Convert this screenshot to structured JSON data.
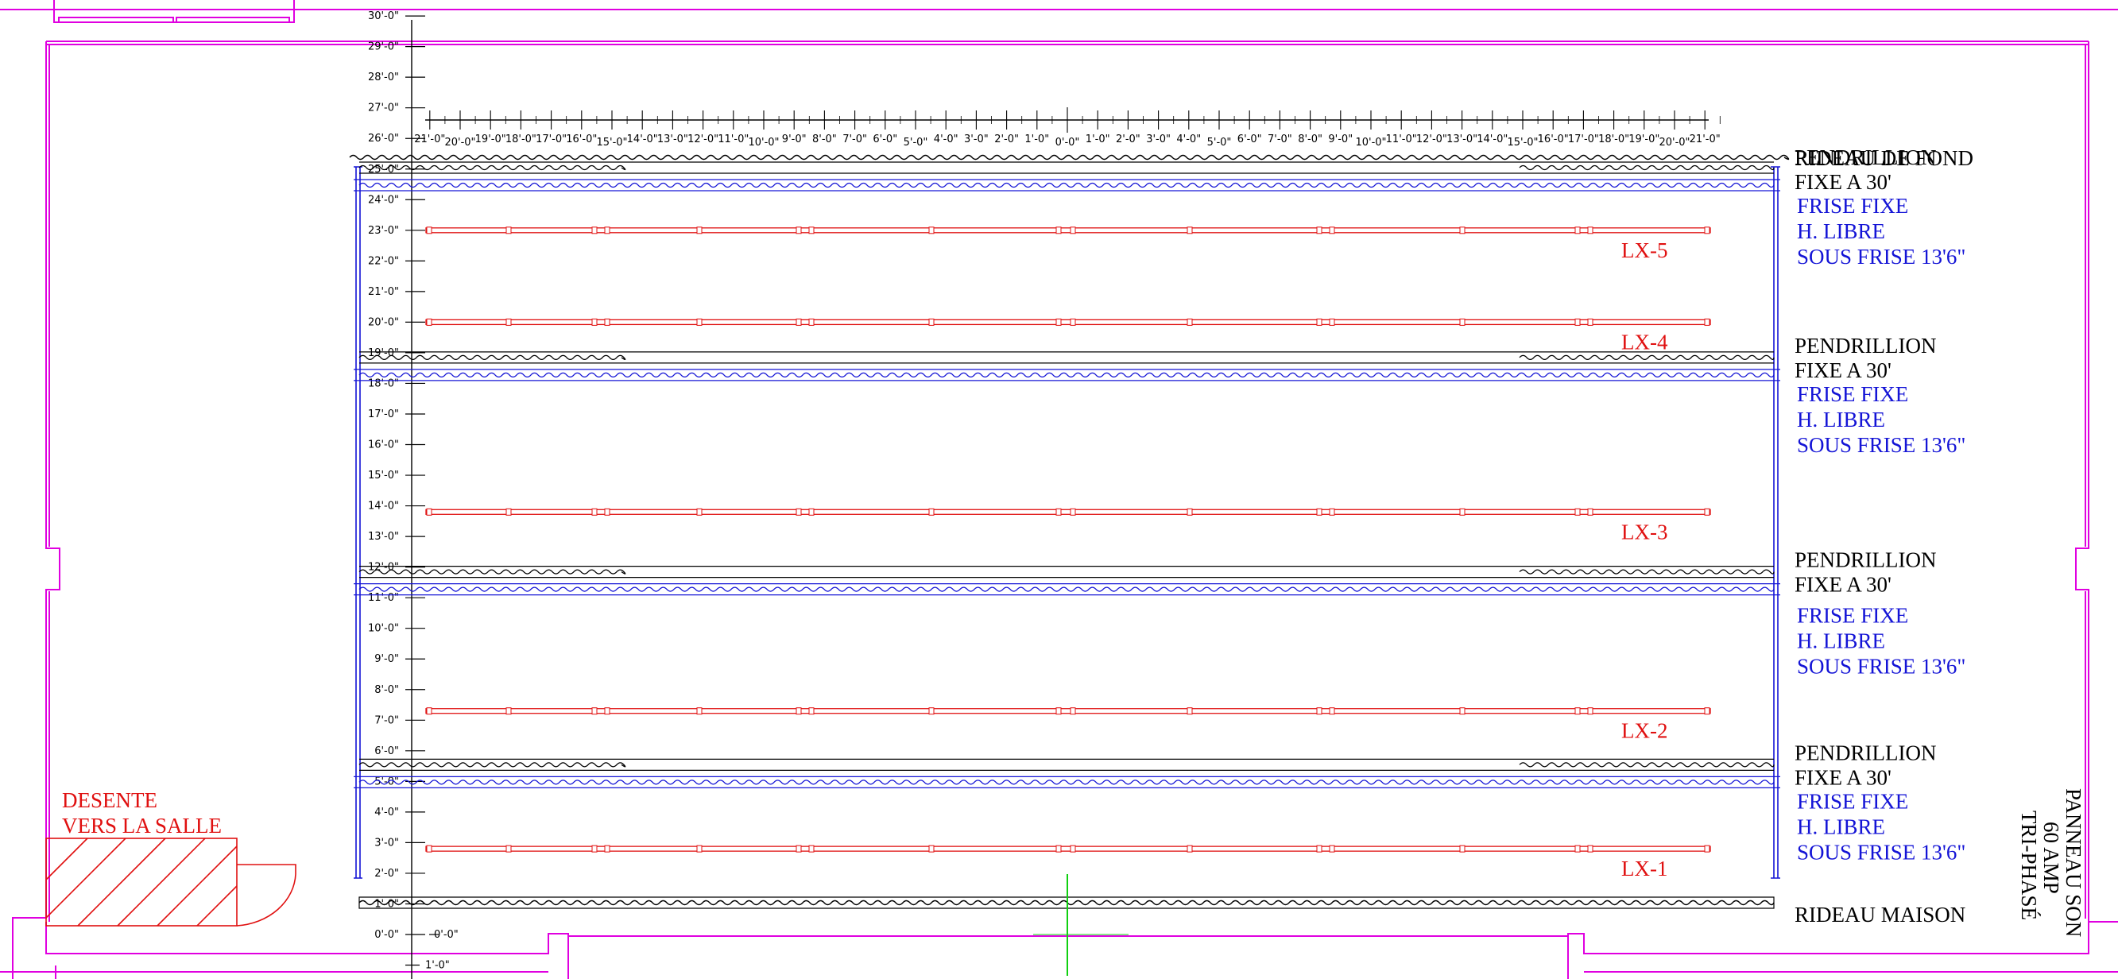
{
  "colors": {
    "wall": "#e000e0",
    "drape": "#000000",
    "border_drape": "#1414d6",
    "electric": "#e01010",
    "centerline": "#10d010",
    "stair": "#e01010",
    "text": "#000000",
    "blue_text": "#1414d6"
  },
  "vertical_scale": {
    "labels": [
      "30'-0\"",
      "29'-0\"",
      "28'-0\"",
      "27'-0\"",
      "26'-0\"",
      "25'-0\"",
      "24'-0\"",
      "23'-0\"",
      "22'-0\"",
      "21'-0\"",
      "20'-0\"",
      "19'-0\"",
      "18'-0\"",
      "17'-0\"",
      "16'-0\"",
      "15'-0\"",
      "14'-0\"",
      "13'-0\"",
      "12'-0\"",
      "11'-0\"",
      "10'-0\"",
      "9'-0\"",
      "8'-0\"",
      "7'-0\"",
      "6'-0\"",
      "5'-0\"",
      "4'-0\"",
      "3'-0\"",
      "2'-0\"",
      "1'-0\"",
      "0'-0\""
    ],
    "below_label": "1'-0\"",
    "zero_right_label": "0'-0\""
  },
  "horizontal_scale": {
    "left_labels": [
      "21'-0\"",
      "20'-0\"",
      "19'-0\"",
      "18'-0\"",
      "17'-0\"",
      "16'-0\"",
      "15'-0\"",
      "14'-0\"",
      "13'-0\"",
      "12'-0\"",
      "11'-0\"",
      "10'-0\"",
      "9'-0\"",
      "8'-0\"",
      "7'-0\"",
      "6'-0\"",
      "5'-0\"",
      "4'-0\"",
      "3'-0\"",
      "2'-0\"",
      "1'-0\""
    ],
    "center_label": "0'-0\"",
    "right_labels": [
      "1'-0\"",
      "2'-0\"",
      "3'-0\"",
      "4'-0\"",
      "5'-0\"",
      "6'-0\"",
      "7'-0\"",
      "8'-0\"",
      "9'-0\"",
      "10'-0\"",
      "11'-0\"",
      "12'-0\"",
      "13'-0\"",
      "14'-0\"",
      "15'-0\"",
      "16'-0\"",
      "17'-0\"",
      "18'-0\"",
      "19'-0\"",
      "20'-0\"",
      "21'-0\""
    ]
  },
  "labels": {
    "rideau_de_fond": "RIDEAU DE FOND",
    "rideau_maison": "RIDEAU MAISON",
    "pendrillion": "PENDRILLION",
    "fixe_a_30": "FIXE A 30'",
    "frise_fixe": "FRISE FIXE",
    "h_libre": "H. LIBRE",
    "sous_frise": "SOUS FRISE 13'6\"",
    "stair_line1": "DESENTE",
    "stair_line2": "VERS LA SALLE",
    "panel_line1": "PANNEAU SON",
    "panel_line2": "60 AMP",
    "panel_line3": "TRI-PHASÉ"
  },
  "electrics": [
    {
      "name": "LX-5",
      "depth_ft": 23
    },
    {
      "name": "LX-4",
      "depth_ft": 20
    },
    {
      "name": "LX-3",
      "depth_ft": 13.8
    },
    {
      "name": "LX-2",
      "depth_ft": 7.3
    },
    {
      "name": "LX-1",
      "depth_ft": 2.8
    }
  ],
  "leg_sets": [
    {
      "depth_ft": 24.5
    },
    {
      "depth_ft": 18.3
    },
    {
      "depth_ft": 11.3
    },
    {
      "depth_ft": 5.0
    }
  ]
}
